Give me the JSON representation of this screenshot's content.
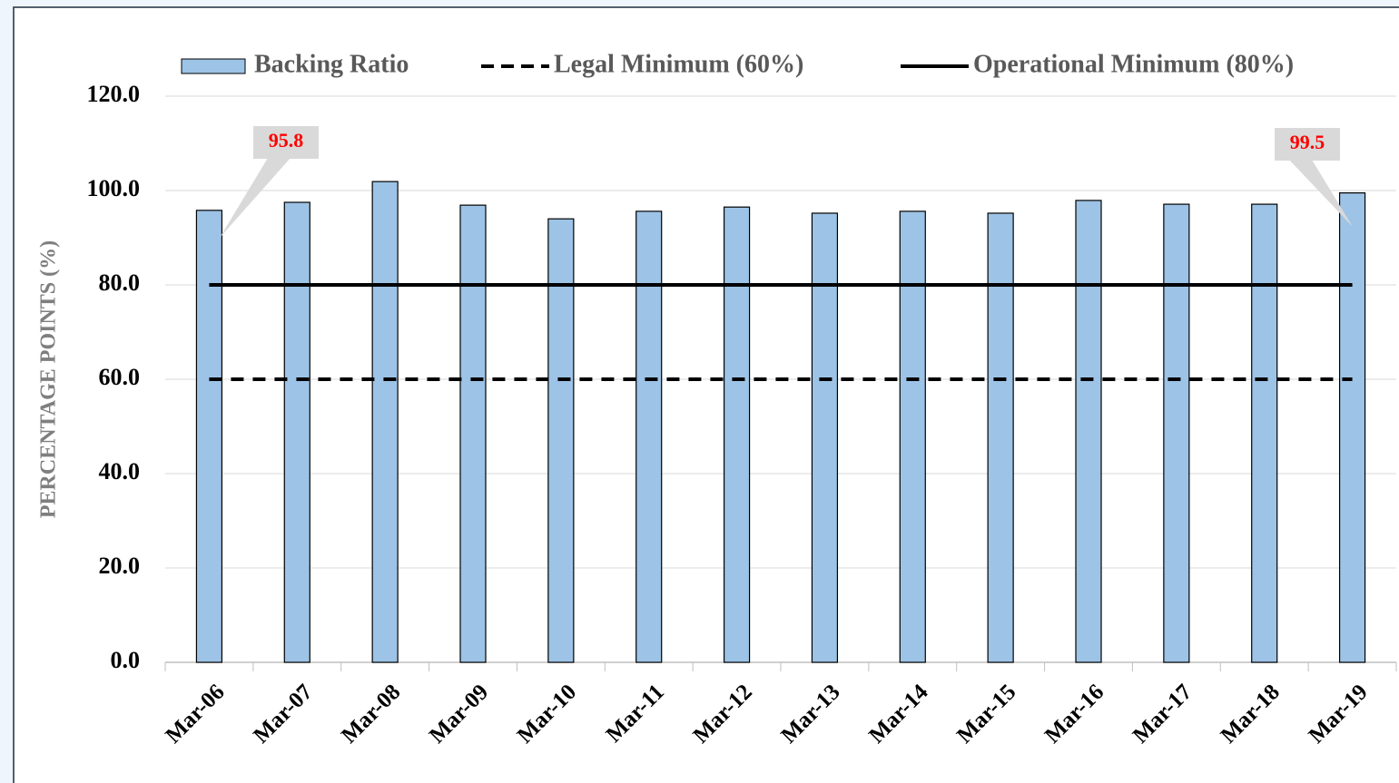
{
  "chart_data": {
    "type": "bar",
    "categories": [
      "Mar-06",
      "Mar-07",
      "Mar-08",
      "Mar-09",
      "Mar-10",
      "Mar-11",
      "Mar-12",
      "Mar-13",
      "Mar-14",
      "Mar-15",
      "Mar-16",
      "Mar-17",
      "Mar-18",
      "Mar-19"
    ],
    "series": [
      {
        "name": "Backing Ratio",
        "type": "bar",
        "color": "#9dc3e6",
        "values": [
          95.8,
          97.5,
          101.9,
          96.9,
          94.0,
          95.6,
          96.5,
          95.2,
          95.6,
          95.2,
          97.9,
          97.1,
          97.1,
          99.5
        ]
      },
      {
        "name": "Legal Minimum (60%)",
        "type": "line",
        "dash": true,
        "color": "#000000",
        "values": [
          60,
          60,
          60,
          60,
          60,
          60,
          60,
          60,
          60,
          60,
          60,
          60,
          60,
          60
        ]
      },
      {
        "name": "Operational Minimum (80%)",
        "type": "line",
        "dash": false,
        "color": "#000000",
        "values": [
          80,
          80,
          80,
          80,
          80,
          80,
          80,
          80,
          80,
          80,
          80,
          80,
          80,
          80
        ]
      }
    ],
    "y_label": "PERCENTAGE POINTS (%)",
    "ylim": [
      0,
      120
    ],
    "yticks": [
      {
        "value": 0,
        "label": "0.0"
      },
      {
        "value": 20,
        "label": "20.0"
      },
      {
        "value": 40,
        "label": "40.0"
      },
      {
        "value": 60,
        "label": "60.0"
      },
      {
        "value": 80,
        "label": "80.0"
      },
      {
        "value": 100,
        "label": "100.0"
      },
      {
        "value": 120,
        "label": "120.0"
      }
    ],
    "grid": true,
    "legend": "top"
  }
}
